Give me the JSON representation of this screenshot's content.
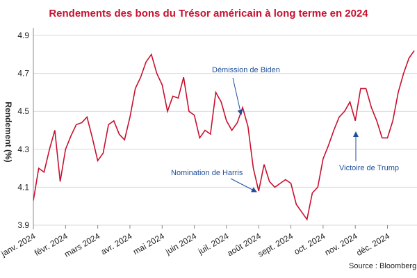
{
  "chart_data": {
    "type": "line",
    "title": "Rendements des bons du Trésor américain à long terme en 2024",
    "y_label": "Rendement (%)",
    "source": "Source : Bloomberg",
    "annotations": [
      "Démission de Biden",
      "Nomination de Harris",
      "Victoire de Trump"
    ],
    "categories": [
      "janv. 2024",
      null,
      null,
      null,
      null,
      null,
      "févr. 2024",
      null,
      null,
      null,
      null,
      null,
      "mars 2024",
      null,
      null,
      null,
      null,
      null,
      "avr. 2024",
      null,
      null,
      null,
      null,
      null,
      "mai 2024",
      null,
      null,
      null,
      null,
      null,
      "juin 2024",
      null,
      null,
      null,
      null,
      null,
      "juil. 2024",
      null,
      null,
      null,
      null,
      null,
      "août 2024",
      null,
      null,
      null,
      null,
      null,
      "sept. 2024",
      null,
      null,
      null,
      null,
      null,
      "oct. 2024",
      null,
      null,
      null,
      null,
      null,
      "nov. 2024",
      null,
      null,
      null,
      null,
      null,
      "déc. 2024",
      null,
      null,
      null,
      null,
      null
    ],
    "series": [
      {
        "name": "Rendement",
        "color": "#c8102e",
        "values": [
          4.03,
          4.2,
          4.18,
          4.3,
          4.4,
          4.13,
          4.3,
          4.37,
          4.43,
          4.44,
          4.47,
          4.36,
          4.24,
          4.28,
          4.43,
          4.45,
          4.38,
          4.35,
          4.47,
          4.62,
          4.68,
          4.76,
          4.8,
          4.7,
          4.64,
          4.5,
          4.58,
          4.57,
          4.68,
          4.5,
          4.48,
          4.36,
          4.4,
          4.38,
          4.6,
          4.55,
          4.45,
          4.4,
          4.44,
          4.52,
          4.42,
          4.2,
          4.08,
          4.22,
          4.13,
          4.1,
          4.12,
          4.14,
          4.12,
          4.01,
          3.97,
          3.93,
          4.07,
          4.1,
          4.25,
          4.32,
          4.4,
          4.47,
          4.5,
          4.55,
          4.45,
          4.62,
          4.62,
          4.52,
          4.45,
          4.36,
          4.36,
          4.45,
          4.6,
          4.7,
          4.78,
          4.82
        ]
      }
    ],
    "ylim": [
      3.9,
      4.9
    ],
    "yticks": [
      3.9,
      4.1,
      4.3,
      4.5,
      4.7,
      4.9
    ],
    "grid": true
  }
}
